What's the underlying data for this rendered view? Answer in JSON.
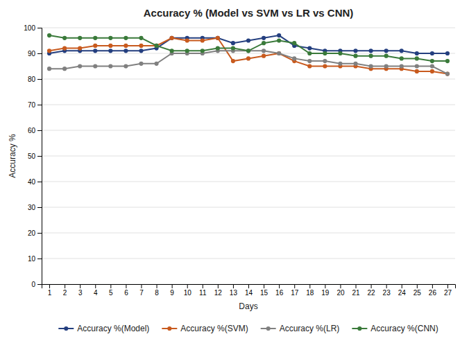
{
  "chart_data": {
    "type": "line",
    "title": "Accuracy % (Model vs SVM vs LR vs CNN)",
    "xlabel": "Days",
    "ylabel": "Accuracy %",
    "x": [
      1,
      2,
      3,
      4,
      5,
      6,
      7,
      8,
      9,
      10,
      11,
      12,
      13,
      14,
      15,
      16,
      17,
      18,
      19,
      20,
      21,
      22,
      23,
      24,
      25,
      26,
      27
    ],
    "series": [
      {
        "name": "Accuracy %(Model)",
        "color": "#243f7f",
        "marker": "circle",
        "values": [
          90,
          91,
          91,
          91,
          91,
          91,
          91,
          92,
          96,
          96,
          96,
          96,
          94,
          95,
          96,
          97,
          93,
          92,
          91,
          91,
          91,
          91,
          91,
          91,
          90,
          90,
          90
        ]
      },
      {
        "name": "Accuracy %(SVM)",
        "color": "#c85a1e",
        "marker": "circle",
        "values": [
          91,
          92,
          92,
          93,
          93,
          93,
          93,
          93,
          96,
          95,
          95,
          96,
          87,
          88,
          89,
          90,
          87,
          85,
          85,
          85,
          85,
          84,
          84,
          84,
          83,
          83,
          82
        ]
      },
      {
        "name": "Accuracy %(LR)",
        "color": "#808080",
        "marker": "circle",
        "values": [
          84,
          84,
          85,
          85,
          85,
          85,
          86,
          86,
          90,
          90,
          90,
          91,
          91,
          91,
          91,
          90,
          88,
          87,
          87,
          86,
          86,
          85,
          85,
          85,
          85,
          85,
          82
        ]
      },
      {
        "name": "Accuracy %(CNN)",
        "color": "#3a7a3a",
        "marker": "circle",
        "values": [
          97,
          96,
          96,
          96,
          96,
          96,
          96,
          93,
          91,
          91,
          91,
          92,
          92,
          91,
          94,
          95,
          94,
          90,
          90,
          90,
          89,
          89,
          89,
          88,
          88,
          87,
          87
        ]
      }
    ],
    "xlim": [
      0.5,
      27.5
    ],
    "xticks": [
      1,
      2,
      3,
      4,
      5,
      6,
      7,
      8,
      9,
      10,
      11,
      12,
      13,
      14,
      15,
      16,
      17,
      18,
      19,
      20,
      21,
      22,
      23,
      24,
      25,
      26,
      27
    ],
    "ylim": [
      0,
      100
    ],
    "yticks": [
      0,
      10,
      20,
      30,
      40,
      50,
      60,
      70,
      80,
      90,
      100
    ],
    "grid": true,
    "legend": "bottom"
  }
}
